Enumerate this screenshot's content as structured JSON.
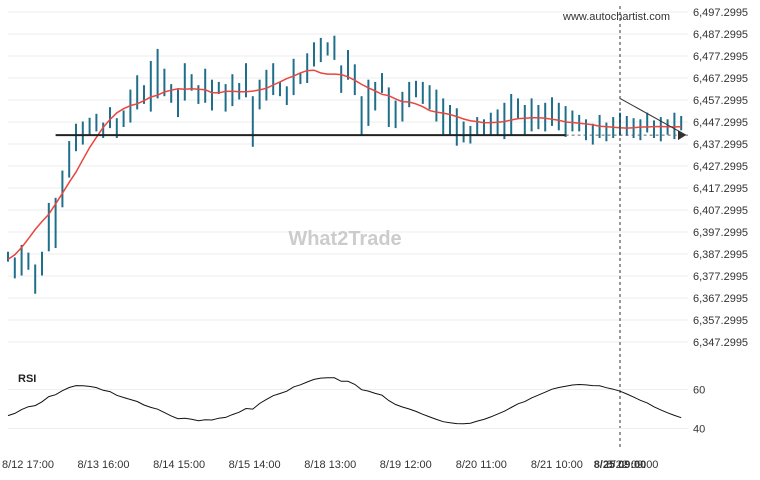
{
  "branding": {
    "source": "www.autochartist.com",
    "watermark": "What2Trade"
  },
  "chart_data": {
    "type": "line",
    "price_panel": {
      "series": [
        {
          "type": "bar",
          "points": [
            [
              0.0,
              6388.3,
              6383.8
            ],
            [
              0.01,
              6385.7,
              6376.2
            ],
            [
              0.02,
              6391.4,
              6377.5
            ],
            [
              0.03,
              6387.9,
              6380.1
            ],
            [
              0.04,
              6382.5,
              6369.2
            ],
            [
              0.05,
              6388.3,
              6377.5
            ],
            [
              0.06,
              6410.5,
              6388.5
            ],
            [
              0.07,
              6412.8,
              6390.0
            ],
            [
              0.08,
              6425.2,
              6408.5
            ],
            [
              0.09,
              6438.6,
              6422.0
            ],
            [
              0.1,
              6446.5,
              6434.0
            ],
            [
              0.11,
              6447.5,
              6437.0
            ],
            [
              0.12,
              6449.2,
              6441.0
            ],
            [
              0.13,
              6451.0,
              6443.0
            ],
            [
              0.14,
              6447.0,
              6440.0
            ],
            [
              0.15,
              6454.0,
              6444.5
            ],
            [
              0.16,
              6449.0,
              6440.0
            ],
            [
              0.17,
              6452.5,
              6445.0
            ],
            [
              0.18,
              6462.0,
              6447.0
            ],
            [
              0.19,
              6468.5,
              6453.0
            ],
            [
              0.2,
              6464.0,
              6455.5
            ],
            [
              0.21,
              6475.0,
              6452.0
            ],
            [
              0.22,
              6480.5,
              6458.0
            ],
            [
              0.23,
              6471.5,
              6459.0
            ],
            [
              0.24,
              6464.5,
              6456.0
            ],
            [
              0.25,
              6462.0,
              6449.5
            ],
            [
              0.26,
              6474.0,
              6457.0
            ],
            [
              0.27,
              6469.0,
              6461.5
            ],
            [
              0.28,
              6464.0,
              6455.5
            ],
            [
              0.29,
              6471.5,
              6456.0
            ],
            [
              0.3,
              6466.5,
              6452.5
            ],
            [
              0.31,
              6465.5,
              6460.0
            ],
            [
              0.32,
              6464.5,
              6452.0
            ],
            [
              0.33,
              6469.0,
              6454.5
            ],
            [
              0.34,
              6465.0,
              6457.5
            ],
            [
              0.35,
              6474.0,
              6458.5
            ],
            [
              0.36,
              6459.0,
              6436.0
            ],
            [
              0.37,
              6466.5,
              6453.0
            ],
            [
              0.38,
              6471.0,
              6457.0
            ],
            [
              0.39,
              6474.0,
              6459.5
            ],
            [
              0.4,
              6465.5,
              6459.0
            ],
            [
              0.41,
              6463.5,
              6455.0
            ],
            [
              0.42,
              6476.0,
              6459.5
            ],
            [
              0.43,
              6469.5,
              6464.5
            ],
            [
              0.44,
              6478.5,
              6465.0
            ],
            [
              0.45,
              6483.5,
              6472.5
            ],
            [
              0.46,
              6485.5,
              6474.5
            ],
            [
              0.47,
              6483.5,
              6477.5
            ],
            [
              0.48,
              6486.5,
              6475.5
            ],
            [
              0.49,
              6473.0,
              6460.5
            ],
            [
              0.5,
              6480.0,
              6466.5
            ],
            [
              0.51,
              6473.5,
              6459.5
            ],
            [
              0.52,
              6459.0,
              6441.0
            ],
            [
              0.53,
              6466.5,
              6445.5
            ],
            [
              0.54,
              6465.5,
              6452.5
            ],
            [
              0.55,
              6469.5,
              6460.5
            ],
            [
              0.56,
              6463.0,
              6445.0
            ],
            [
              0.57,
              6457.0,
              6444.5
            ],
            [
              0.58,
              6461.0,
              6447.5
            ],
            [
              0.59,
              6465.5,
              6454.0
            ],
            [
              0.6,
              6466.0,
              6458.5
            ],
            [
              0.61,
              6465.5,
              6455.5
            ],
            [
              0.62,
              6464.0,
              6453.0
            ],
            [
              0.63,
              6462.0,
              6447.5
            ],
            [
              0.64,
              6458.0,
              6441.5
            ],
            [
              0.65,
              6455.0,
              6441.0
            ],
            [
              0.66,
              6453.5,
              6436.5
            ],
            [
              0.67,
              6447.5,
              6438.0
            ],
            [
              0.68,
              6445.5,
              6437.5
            ],
            [
              0.69,
              6449.5,
              6441.0
            ],
            [
              0.7,
              6448.5,
              6441.0
            ],
            [
              0.71,
              6451.5,
              6441.0
            ],
            [
              0.72,
              6453.0,
              6441.5
            ],
            [
              0.73,
              6456.0,
              6439.5
            ],
            [
              0.74,
              6460.0,
              6441.5
            ],
            [
              0.75,
              6458.0,
              6448.5
            ],
            [
              0.76,
              6455.0,
              6441.0
            ],
            [
              0.77,
              6458.0,
              6443.0
            ],
            [
              0.78,
              6455.0,
              6444.0
            ],
            [
              0.79,
              6456.0,
              6443.0
            ],
            [
              0.8,
              6458.5,
              6445.5
            ],
            [
              0.81,
              6456.0,
              6443.5
            ],
            [
              0.82,
              6454.5,
              6440.5
            ],
            [
              0.83,
              6452.5,
              6443.0
            ],
            [
              0.84,
              6450.5,
              6443.0
            ],
            [
              0.85,
              6448.5,
              6439.0
            ],
            [
              0.86,
              6446.5,
              6437.0
            ],
            [
              0.87,
              6450.5,
              6440.0
            ],
            [
              0.88,
              6447.0,
              6438.5
            ],
            [
              0.89,
              6449.5,
              6440.0
            ],
            [
              0.9,
              6451.5,
              6441.0
            ],
            [
              0.91,
              6450.0,
              6441.0
            ],
            [
              0.92,
              6449.0,
              6440.0
            ],
            [
              0.93,
              6448.5,
              6439.0
            ],
            [
              0.94,
              6451.5,
              6442.5
            ],
            [
              0.95,
              6448.0,
              6440.0
            ],
            [
              0.96,
              6449.5,
              6438.5
            ],
            [
              0.97,
              6448.5,
              6441.5
            ],
            [
              0.98,
              6451.5,
              6439.5
            ],
            [
              0.99,
              6450.0,
              6443.5
            ]
          ]
        }
      ]
    }
  }
}
